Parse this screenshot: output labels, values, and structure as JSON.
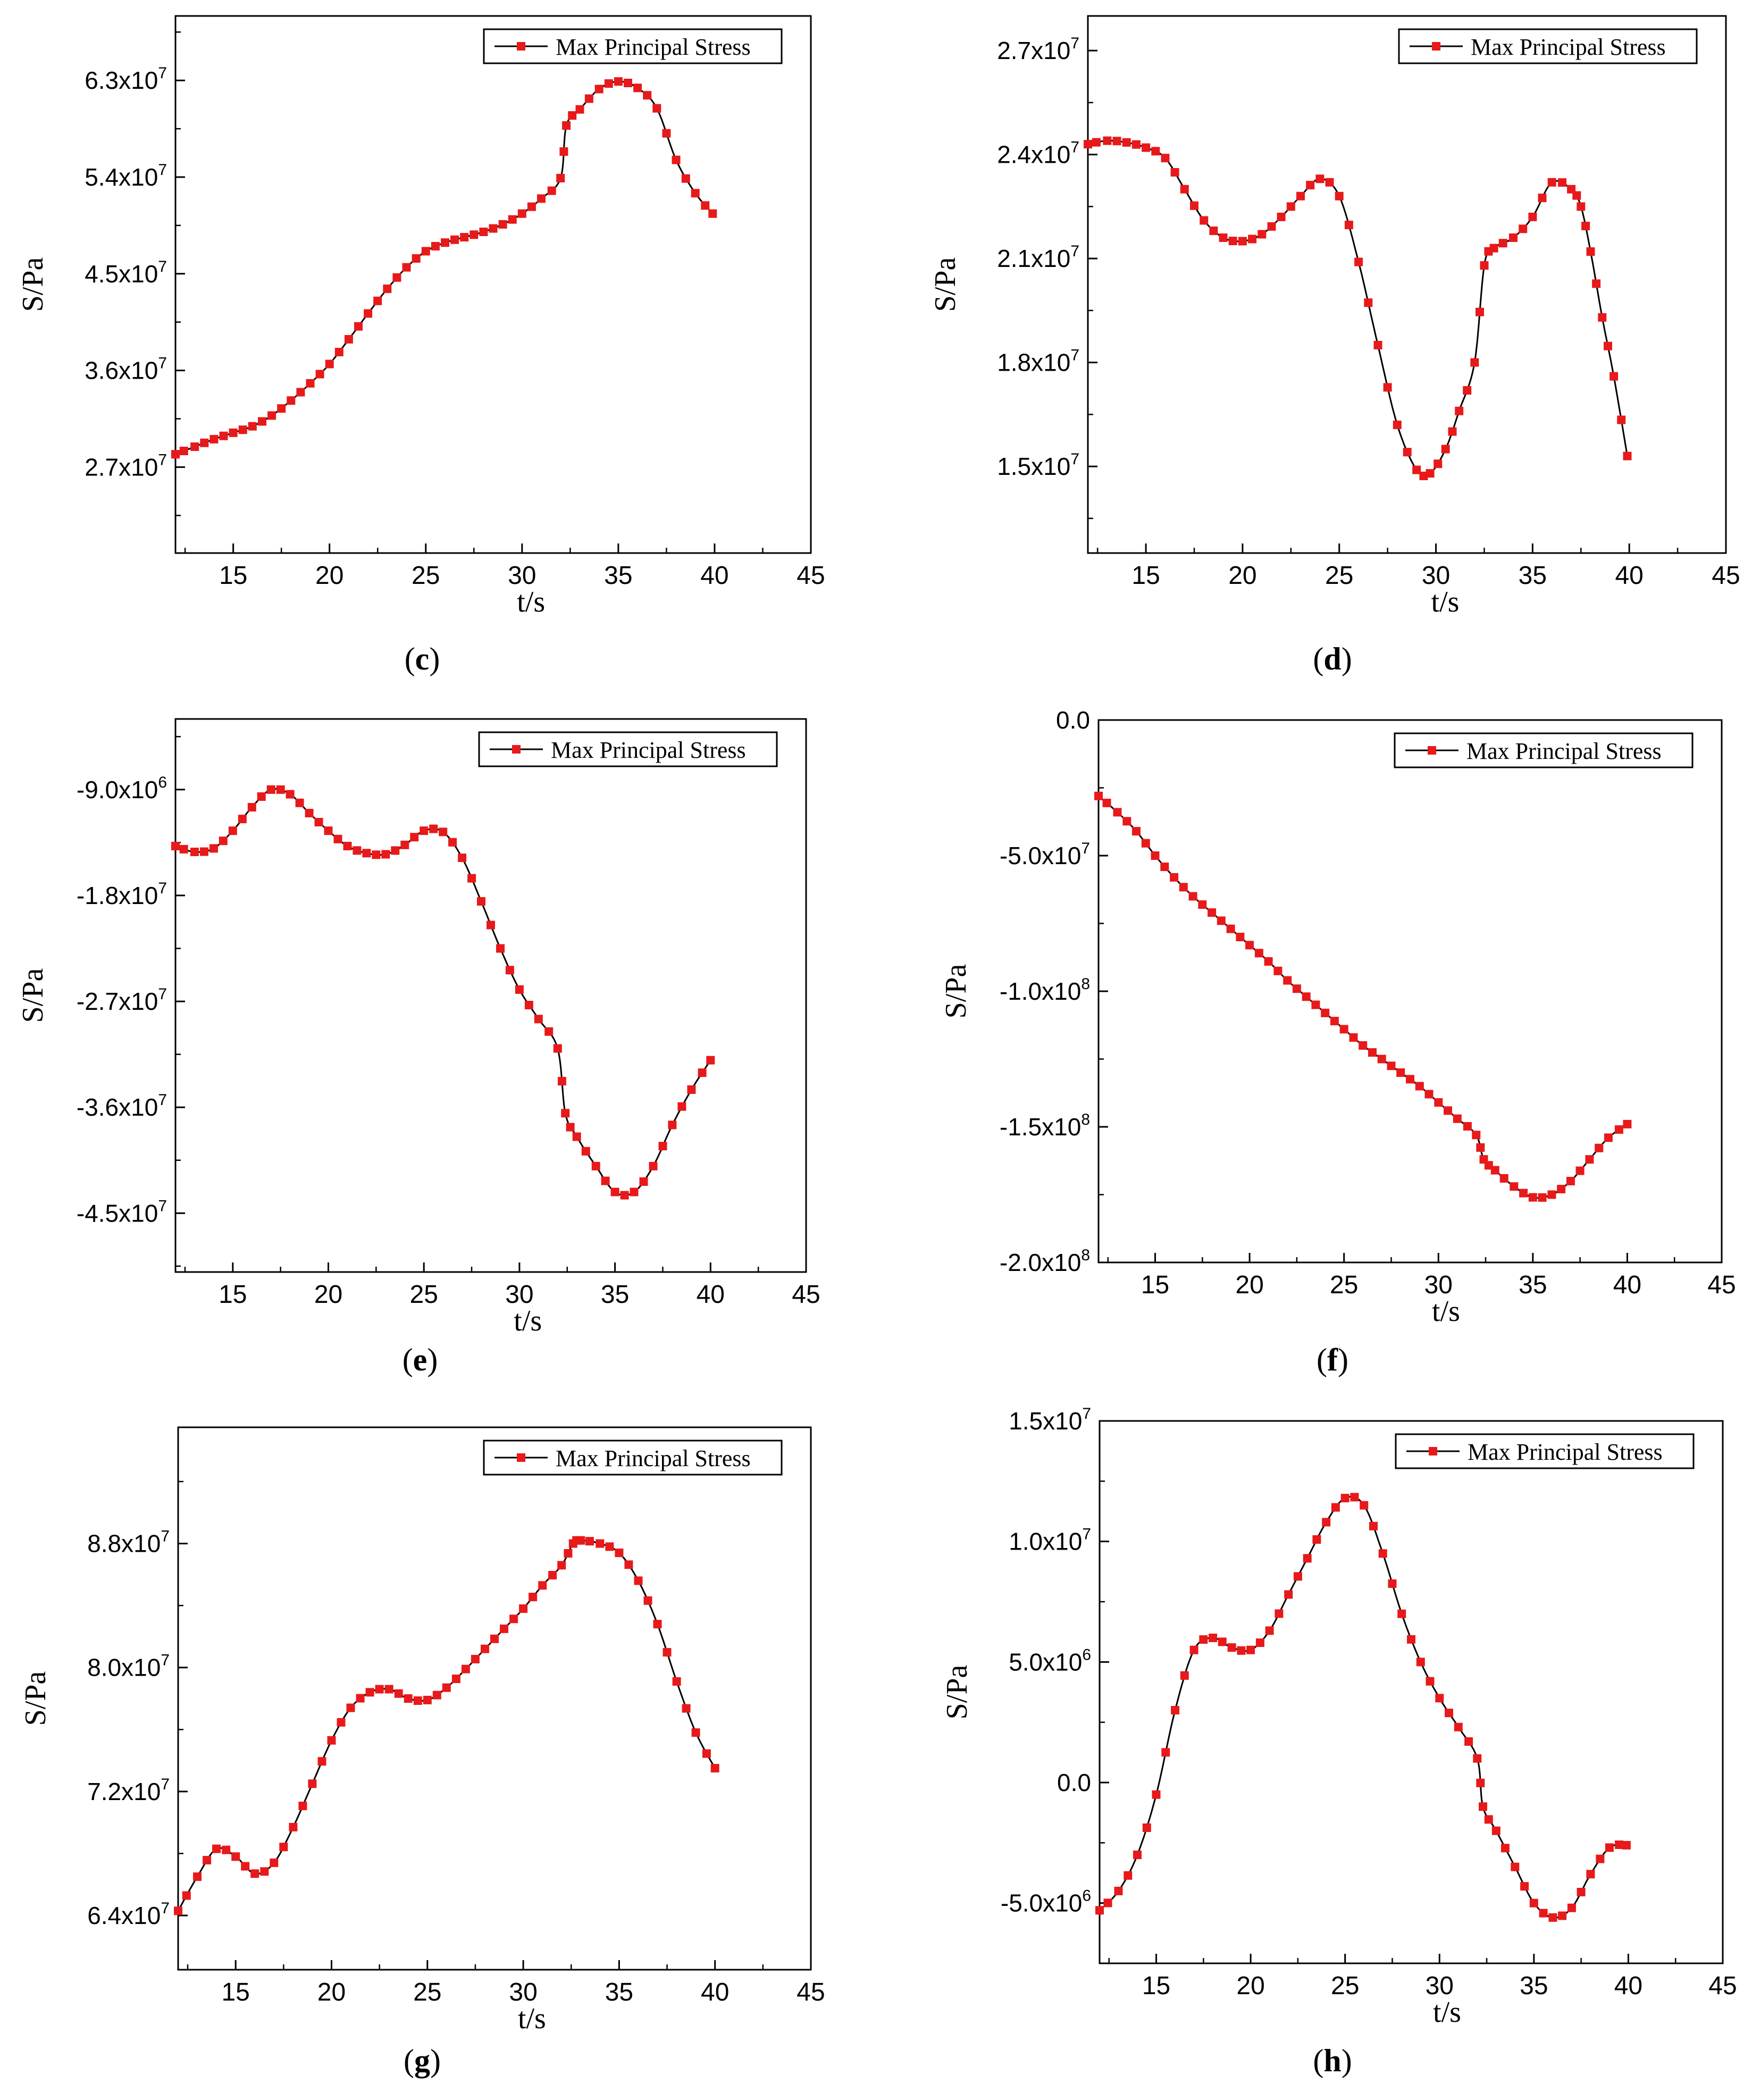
{
  "chart_data": [
    {
      "id": "c",
      "caption": "c",
      "type": "line",
      "title": "",
      "xlabel": "t/s",
      "ylabel": "S/Pa",
      "legend": "Max Principal Stress",
      "xlim": [
        12,
        45
      ],
      "ylim": [
        19000000,
        69000000
      ],
      "xticks": [
        "15",
        "20",
        "25",
        "30",
        "35",
        "40",
        "45"
      ],
      "xtick_values": [
        15,
        20,
        25,
        30,
        35,
        40,
        45
      ],
      "yticks": [
        {
          "m": "2.7x10",
          "e": "7",
          "v": 27000000
        },
        {
          "m": "3.6x10",
          "e": "7",
          "v": 36000000
        },
        {
          "m": "4.5x10",
          "e": "7",
          "v": 45000000
        },
        {
          "m": "5.4x10",
          "e": "7",
          "v": 54000000
        },
        {
          "m": "6.3x10",
          "e": "7",
          "v": 63000000
        }
      ],
      "yminor": [
        22500000,
        31500000,
        40500000,
        49500000,
        58500000,
        67500000
      ],
      "knots": [
        [
          12,
          28.2
        ],
        [
          13,
          28.9
        ],
        [
          14,
          29.6
        ],
        [
          15,
          30.2
        ],
        [
          16,
          30.8
        ],
        [
          17,
          31.8
        ],
        [
          18,
          33.2
        ],
        [
          19,
          34.8
        ],
        [
          20,
          36.6
        ],
        [
          21,
          38.9
        ],
        [
          22,
          41.3
        ],
        [
          23,
          43.6
        ],
        [
          24,
          45.6
        ],
        [
          25,
          47.1
        ],
        [
          26,
          47.9
        ],
        [
          27,
          48.4
        ],
        [
          28,
          48.9
        ],
        [
          29,
          49.6
        ],
        [
          30,
          50.6
        ],
        [
          31,
          52.0
        ],
        [
          32,
          53.9
        ],
        [
          32.3,
          58.8
        ],
        [
          33,
          60.3
        ],
        [
          34,
          62.2
        ],
        [
          35,
          62.9
        ],
        [
          36,
          62.3
        ],
        [
          37,
          60.4
        ],
        [
          38,
          55.6
        ],
        [
          39,
          52.5
        ],
        [
          39.9,
          50.6
        ]
      ],
      "scale": 1000000
    },
    {
      "id": "d",
      "caption": "d",
      "type": "line",
      "title": "",
      "xlabel": "t/s",
      "ylabel": "S/Pa",
      "legend": "Max Principal Stress",
      "xlim": [
        12,
        45
      ],
      "ylim": [
        12500000,
        28000000
      ],
      "xticks": [
        "15",
        "20",
        "25",
        "30",
        "35",
        "40",
        "45"
      ],
      "xtick_values": [
        15,
        20,
        25,
        30,
        35,
        40,
        45
      ],
      "yticks": [
        {
          "m": "1.5x10",
          "e": "7",
          "v": 15000000
        },
        {
          "m": "1.8x10",
          "e": "7",
          "v": 18000000
        },
        {
          "m": "2.1x10",
          "e": "7",
          "v": 21000000
        },
        {
          "m": "2.4x10",
          "e": "7",
          "v": 24000000
        },
        {
          "m": "2.7x10",
          "e": "7",
          "v": 27000000
        }
      ],
      "yminor": [
        13500000,
        16500000,
        19500000,
        22500000,
        25500000
      ],
      "knots": [
        [
          12,
          24.3
        ],
        [
          13,
          24.4
        ],
        [
          14,
          24.35
        ],
        [
          15,
          24.2
        ],
        [
          16,
          23.9
        ],
        [
          17,
          23.0
        ],
        [
          18,
          22.1
        ],
        [
          19,
          21.6
        ],
        [
          20,
          21.5
        ],
        [
          21,
          21.7
        ],
        [
          22,
          22.2
        ],
        [
          23,
          22.8
        ],
        [
          24,
          23.3
        ],
        [
          25,
          22.8
        ],
        [
          26,
          20.9
        ],
        [
          27,
          18.5
        ],
        [
          28,
          16.2
        ],
        [
          29,
          14.9
        ],
        [
          29.7,
          14.8
        ],
        [
          30.5,
          15.5
        ],
        [
          31.2,
          16.6
        ],
        [
          32,
          18.0
        ],
        [
          32.5,
          20.8
        ],
        [
          33,
          21.3
        ],
        [
          34,
          21.6
        ],
        [
          35,
          22.2
        ],
        [
          36,
          23.2
        ],
        [
          37,
          23.0
        ],
        [
          37.5,
          22.5
        ],
        [
          38,
          21.2
        ],
        [
          38.6,
          19.3
        ],
        [
          39.2,
          17.6
        ],
        [
          39.9,
          15.3
        ]
      ],
      "scale": 1000000
    },
    {
      "id": "e",
      "caption": "e",
      "type": "line",
      "title": "",
      "xlabel": "t/s",
      "ylabel": "S/Pa",
      "legend": "Max Principal Stress",
      "xlim": [
        12,
        45
      ],
      "ylim": [
        -50000000,
        -3000000
      ],
      "xticks": [
        "15",
        "20",
        "25",
        "30",
        "35",
        "40",
        "45"
      ],
      "xtick_values": [
        15,
        20,
        25,
        30,
        35,
        40,
        45
      ],
      "yticks": [
        {
          "m": "-9.0x10",
          "e": "6",
          "v": -9000000
        },
        {
          "m": "-1.8x10",
          "e": "7",
          "v": -18000000
        },
        {
          "m": "-2.7x10",
          "e": "7",
          "v": -27000000
        },
        {
          "m": "-3.6x10",
          "e": "7",
          "v": -36000000
        },
        {
          "m": "-4.5x10",
          "e": "7",
          "v": -45000000
        }
      ],
      "yminor": [
        -4500000,
        -13500000,
        -22500000,
        -31500000,
        -40500000,
        -49500000
      ],
      "knots": [
        [
          12,
          -13.8
        ],
        [
          13,
          -14.3
        ],
        [
          14,
          -14.0
        ],
        [
          15,
          -12.5
        ],
        [
          16,
          -10.5
        ],
        [
          17,
          -9.0
        ],
        [
          18,
          -9.4
        ],
        [
          19,
          -11.0
        ],
        [
          20,
          -12.5
        ],
        [
          21,
          -13.8
        ],
        [
          22,
          -14.4
        ],
        [
          23,
          -14.5
        ],
        [
          24,
          -13.7
        ],
        [
          25,
          -12.5
        ],
        [
          26,
          -12.6
        ],
        [
          27,
          -14.8
        ],
        [
          28,
          -18.5
        ],
        [
          29,
          -22.5
        ],
        [
          30,
          -26.0
        ],
        [
          31,
          -28.5
        ],
        [
          32,
          -31.0
        ],
        [
          32.4,
          -36.5
        ],
        [
          33,
          -38.5
        ],
        [
          34,
          -41.0
        ],
        [
          35,
          -43.2
        ],
        [
          36,
          -43.2
        ],
        [
          37,
          -41.0
        ],
        [
          38,
          -37.5
        ],
        [
          39,
          -34.5
        ],
        [
          40,
          -32.0
        ]
      ],
      "scale": 1000000
    },
    {
      "id": "f",
      "caption": "f",
      "type": "line",
      "title": "",
      "xlabel": "t/s",
      "ylabel": "S/Pa",
      "legend": "Max Principal Stress",
      "xlim": [
        12,
        45
      ],
      "ylim": [
        -200000000,
        0
      ],
      "xticks": [
        "15",
        "20",
        "25",
        "30",
        "35",
        "40",
        "45"
      ],
      "xtick_values": [
        15,
        20,
        25,
        30,
        35,
        40,
        45
      ],
      "yticks": [
        {
          "m": "0.0",
          "e": "",
          "v": 0
        },
        {
          "m": "-5.0x10",
          "e": "7",
          "v": -50000000
        },
        {
          "m": "-1.0x10",
          "e": "8",
          "v": -100000000
        },
        {
          "m": "-1.5x10",
          "e": "8",
          "v": -150000000
        },
        {
          "m": "-2.0x10",
          "e": "8",
          "v": -200000000
        }
      ],
      "yminor": [
        -25000000,
        -75000000,
        -125000000,
        -175000000
      ],
      "knots": [
        [
          12,
          -28
        ],
        [
          13,
          -34
        ],
        [
          14,
          -41
        ],
        [
          15,
          -50
        ],
        [
          16,
          -58
        ],
        [
          17,
          -65
        ],
        [
          18,
          -71
        ],
        [
          19,
          -77
        ],
        [
          20,
          -83
        ],
        [
          21,
          -89
        ],
        [
          22,
          -96
        ],
        [
          23,
          -102
        ],
        [
          24,
          -108
        ],
        [
          25,
          -114
        ],
        [
          26,
          -120
        ],
        [
          27,
          -125
        ],
        [
          28,
          -130
        ],
        [
          29,
          -135
        ],
        [
          30,
          -141
        ],
        [
          31,
          -147
        ],
        [
          32,
          -153
        ],
        [
          32.4,
          -162
        ],
        [
          33,
          -166
        ],
        [
          34,
          -172
        ],
        [
          35,
          -176
        ],
        [
          36,
          -175
        ],
        [
          37,
          -170
        ],
        [
          38,
          -162
        ],
        [
          39,
          -154
        ],
        [
          40,
          -149
        ]
      ],
      "scale": 1000000
    },
    {
      "id": "g",
      "caption": "g",
      "type": "line",
      "title": "",
      "xlabel": "t/s",
      "ylabel": "S/Pa",
      "legend": "Max Principal Stress",
      "xlim": [
        12,
        45
      ],
      "ylim": [
        60500000,
        95500000
      ],
      "xticks": [
        "15",
        "20",
        "25",
        "30",
        "35",
        "40",
        "45"
      ],
      "xtick_values": [
        15,
        20,
        25,
        30,
        35,
        40,
        45
      ],
      "yticks": [
        {
          "m": "6.4x10",
          "e": "7",
          "v": 64000000
        },
        {
          "m": "7.2x10",
          "e": "7",
          "v": 72000000
        },
        {
          "m": "8.0x10",
          "e": "7",
          "v": 80000000
        },
        {
          "m": "8.8x10",
          "e": "7",
          "v": 88000000
        }
      ],
      "yminor": [
        68000000,
        76000000,
        84000000,
        92000000
      ],
      "knots": [
        [
          12,
          64.3
        ],
        [
          13,
          66.5
        ],
        [
          14,
          68.3
        ],
        [
          15,
          67.8
        ],
        [
          16,
          66.7
        ],
        [
          17,
          67.4
        ],
        [
          18,
          69.7
        ],
        [
          19,
          72.5
        ],
        [
          20,
          75.3
        ],
        [
          21,
          77.4
        ],
        [
          22,
          78.4
        ],
        [
          23,
          78.6
        ],
        [
          24,
          78.0
        ],
        [
          25,
          77.9
        ],
        [
          26,
          78.7
        ],
        [
          27,
          79.9
        ],
        [
          28,
          81.2
        ],
        [
          29,
          82.5
        ],
        [
          30,
          83.8
        ],
        [
          31,
          85.3
        ],
        [
          32,
          86.6
        ],
        [
          32.6,
          88.0
        ],
        [
          33,
          88.2
        ],
        [
          34,
          88.0
        ],
        [
          35,
          87.4
        ],
        [
          36,
          85.6
        ],
        [
          37,
          82.8
        ],
        [
          38,
          79.1
        ],
        [
          39,
          75.8
        ],
        [
          40,
          73.5
        ]
      ],
      "scale": 1000000
    },
    {
      "id": "h",
      "caption": "h",
      "type": "line",
      "title": "",
      "xlabel": "t/s",
      "ylabel": "S/Pa",
      "legend": "Max Principal Stress",
      "xlim": [
        12,
        45
      ],
      "ylim": [
        -7500000,
        15000000
      ],
      "xticks": [
        "15",
        "20",
        "25",
        "30",
        "35",
        "40",
        "45"
      ],
      "xtick_values": [
        15,
        20,
        25,
        30,
        35,
        40,
        45
      ],
      "yticks": [
        {
          "m": "-5.0x10",
          "e": "6",
          "v": -5000000
        },
        {
          "m": "0.0",
          "e": "",
          "v": 0
        },
        {
          "m": "5.0x10",
          "e": "6",
          "v": 5000000
        },
        {
          "m": "1.0x10",
          "e": "7",
          "v": 10000000
        },
        {
          "m": "1.5x10",
          "e": "7",
          "v": 15000000
        }
      ],
      "yminor": [
        -2500000,
        2500000,
        7500000,
        12500000
      ],
      "knots": [
        [
          12,
          -5.3
        ],
        [
          13,
          -4.5
        ],
        [
          14,
          -3.0
        ],
        [
          15,
          -0.5
        ],
        [
          16,
          3.0
        ],
        [
          17,
          5.5
        ],
        [
          18,
          6.0
        ],
        [
          19,
          5.6
        ],
        [
          20,
          5.5
        ],
        [
          21,
          6.3
        ],
        [
          22,
          7.8
        ],
        [
          23,
          9.3
        ],
        [
          24,
          10.8
        ],
        [
          25,
          11.8
        ],
        [
          26,
          11.5
        ],
        [
          27,
          9.5
        ],
        [
          28,
          7.0
        ],
        [
          29,
          5.0
        ],
        [
          30,
          3.5
        ],
        [
          31,
          2.3
        ],
        [
          32,
          1.0
        ],
        [
          32.3,
          -1.0
        ],
        [
          33,
          -2.0
        ],
        [
          34,
          -3.5
        ],
        [
          35,
          -5.0
        ],
        [
          36,
          -5.6
        ],
        [
          37,
          -5.2
        ],
        [
          38,
          -3.8
        ],
        [
          39,
          -2.7
        ],
        [
          39.9,
          -2.6
        ]
      ],
      "scale": 1000000
    }
  ]
}
